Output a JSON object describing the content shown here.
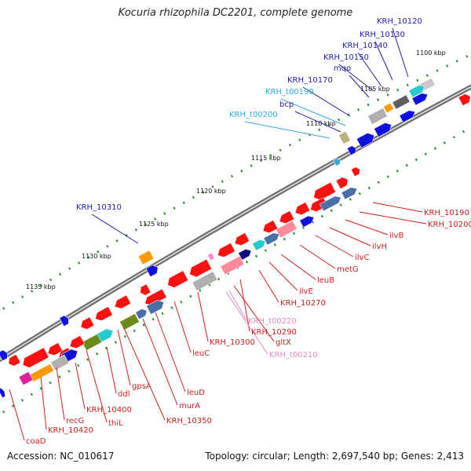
{
  "title": "Kocuria rhizophila DC2201, complete genome",
  "footer": {
    "accession": "Accession: NC_010617",
    "info": "Topology: circular; Length: 2,697,540 bp; Genes: 2,413"
  },
  "tick_labels": [
    "1100 kbp",
    "1105 kbp",
    "1110 kbp",
    "1115 kbp",
    "1120 kbp",
    "1125 kbp",
    "1130 kbp",
    "1135 kbp"
  ],
  "colors": {
    "locus": "#1f1fa8",
    "trna": "#33a9d6",
    "named_gene": "#cc1f1f",
    "trna_pink": "#e08cc0"
  },
  "labels_upper": [
    {
      "text": "KRH_10120",
      "type": "locus"
    },
    {
      "text": "KRH_10130",
      "type": "locus"
    },
    {
      "text": "KRH_10140",
      "type": "locus"
    },
    {
      "text": "KRH_10150",
      "type": "locus"
    },
    {
      "text": "mqo",
      "type": "locus"
    },
    {
      "text": "KRH_10170",
      "type": "locus"
    },
    {
      "text": "KRH_t00190",
      "type": "trna"
    },
    {
      "text": "bcp",
      "type": "locus"
    },
    {
      "text": "KRH_t00200",
      "type": "trna"
    },
    {
      "text": "KRH_10310",
      "type": "locus"
    }
  ],
  "labels_lower": [
    {
      "text": "KRH_10190"
    },
    {
      "text": "KRH_10200"
    },
    {
      "text": "ilvB"
    },
    {
      "text": "ilvH"
    },
    {
      "text": "ilvC"
    },
    {
      "text": "metG"
    },
    {
      "text": "leuB"
    },
    {
      "text": "ilvE"
    },
    {
      "text": "KRH_10270"
    },
    {
      "text": "KRH_t00220",
      "type": "trna_pink"
    },
    {
      "text": "KRH_10290"
    },
    {
      "text": "gltX"
    },
    {
      "text": "KRH_t00210",
      "type": "trna_pink"
    },
    {
      "text": "KRH_10300"
    },
    {
      "text": "leuC"
    },
    {
      "text": "leuD"
    },
    {
      "text": "murA"
    },
    {
      "text": "gpsA"
    },
    {
      "text": "KRH_10350"
    },
    {
      "text": "ddl"
    },
    {
      "text": "thiL"
    },
    {
      "text": "KRH_10400"
    },
    {
      "text": "recG"
    },
    {
      "text": "KRH_10420"
    },
    {
      "text": "coaD"
    }
  ]
}
